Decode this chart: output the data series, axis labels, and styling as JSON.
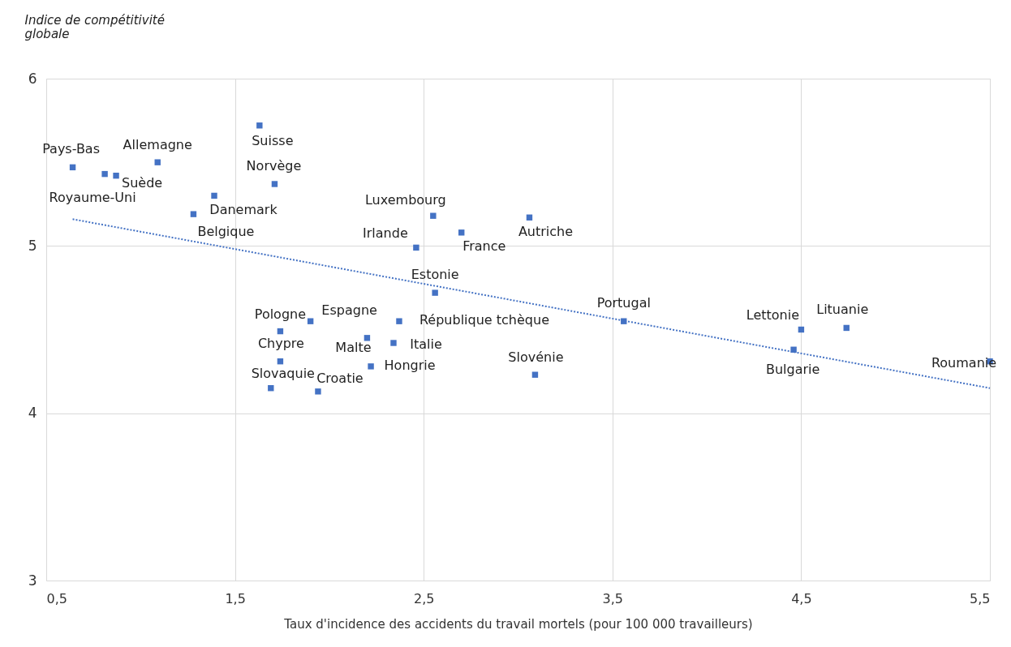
{
  "chart_data": {
    "type": "scatter",
    "ylabel": "Indice de compétitivité globale",
    "xlabel": "Taux d'incidence des accidents du travail mortels (pour 100 000 travailleurs)",
    "xlim": [
      0.5,
      5.5
    ],
    "ylim": [
      3,
      6
    ],
    "xticks": [
      {
        "value": 0.5,
        "label": "0,5"
      },
      {
        "value": 1.5,
        "label": "1,5"
      },
      {
        "value": 2.5,
        "label": "2,5"
      },
      {
        "value": 3.5,
        "label": "3,5"
      },
      {
        "value": 4.5,
        "label": "4,5"
      },
      {
        "value": 5.5,
        "label": "5,5"
      }
    ],
    "yticks": [
      3,
      4,
      5,
      6
    ],
    "grid": true,
    "marker": "square",
    "series": [
      {
        "color": "#4472c4",
        "x": [
          0.64,
          0.81,
          0.87,
          1.09,
          1.39,
          1.28,
          1.63,
          1.71,
          2.55,
          2.46,
          2.7,
          3.06,
          2.56,
          3.56,
          4.5,
          4.74,
          4.46,
          5.5,
          3.09,
          1.74,
          1.9,
          1.74,
          1.69,
          1.94,
          2.2,
          2.34,
          2.37,
          2.22
        ],
        "values": [
          5.47,
          5.43,
          5.42,
          5.5,
          5.3,
          5.19,
          5.72,
          5.37,
          5.18,
          4.99,
          5.08,
          5.17,
          4.72,
          4.55,
          4.5,
          4.51,
          4.38,
          4.31,
          4.23,
          4.49,
          4.55,
          4.31,
          4.15,
          4.13,
          4.45,
          4.42,
          4.55,
          4.28
        ]
      },
      {
        "type": "line",
        "color": "#4472c4",
        "line_style": "dotted",
        "marker": "none",
        "x": [
          0.64,
          5.5
        ],
        "values": [
          5.16,
          4.15
        ]
      }
    ],
    "annotations": [
      {
        "text": "Pays-Bas",
        "x": 0.64,
        "y": 5.47
      },
      {
        "text": "Royaume-Uni",
        "x": 0.81,
        "y": 5.43
      },
      {
        "text": "Suède",
        "x": 0.87,
        "y": 5.42
      },
      {
        "text": "Allemagne",
        "x": 1.09,
        "y": 5.5
      },
      {
        "text": "Danemark",
        "x": 1.39,
        "y": 5.3
      },
      {
        "text": "Belgique",
        "x": 1.28,
        "y": 5.19
      },
      {
        "text": "Suisse",
        "x": 1.63,
        "y": 5.72
      },
      {
        "text": "Norvège",
        "x": 1.71,
        "y": 5.37
      },
      {
        "text": "Luxembourg",
        "x": 2.55,
        "y": 5.18
      },
      {
        "text": "Irlande",
        "x": 2.46,
        "y": 4.99
      },
      {
        "text": "France",
        "x": 2.7,
        "y": 5.08
      },
      {
        "text": "Autriche",
        "x": 3.06,
        "y": 5.17
      },
      {
        "text": "Estonie",
        "x": 2.56,
        "y": 4.72
      },
      {
        "text": "Portugal",
        "x": 3.56,
        "y": 4.55
      },
      {
        "text": "Lettonie",
        "x": 4.5,
        "y": 4.5
      },
      {
        "text": "Lituanie",
        "x": 4.74,
        "y": 4.51
      },
      {
        "text": "Bulgarie",
        "x": 4.46,
        "y": 4.38
      },
      {
        "text": "Roumanie",
        "x": 5.5,
        "y": 4.31
      },
      {
        "text": "Slovénie",
        "x": 3.09,
        "y": 4.23
      },
      {
        "text": "Pologne",
        "x": 1.74,
        "y": 4.49
      },
      {
        "text": "Espagne",
        "x": 1.9,
        "y": 4.55
      },
      {
        "text": "Chypre",
        "x": 1.74,
        "y": 4.31
      },
      {
        "text": "Slovaquie",
        "x": 1.69,
        "y": 4.15
      },
      {
        "text": "Croatie",
        "x": 1.94,
        "y": 4.13
      },
      {
        "text": "Malte",
        "x": 2.2,
        "y": 4.45
      },
      {
        "text": "Italie",
        "x": 2.34,
        "y": 4.42
      },
      {
        "text": "République tchèque",
        "x": 2.37,
        "y": 4.55
      },
      {
        "text": "Hongrie",
        "x": 2.22,
        "y": 4.28
      }
    ]
  }
}
